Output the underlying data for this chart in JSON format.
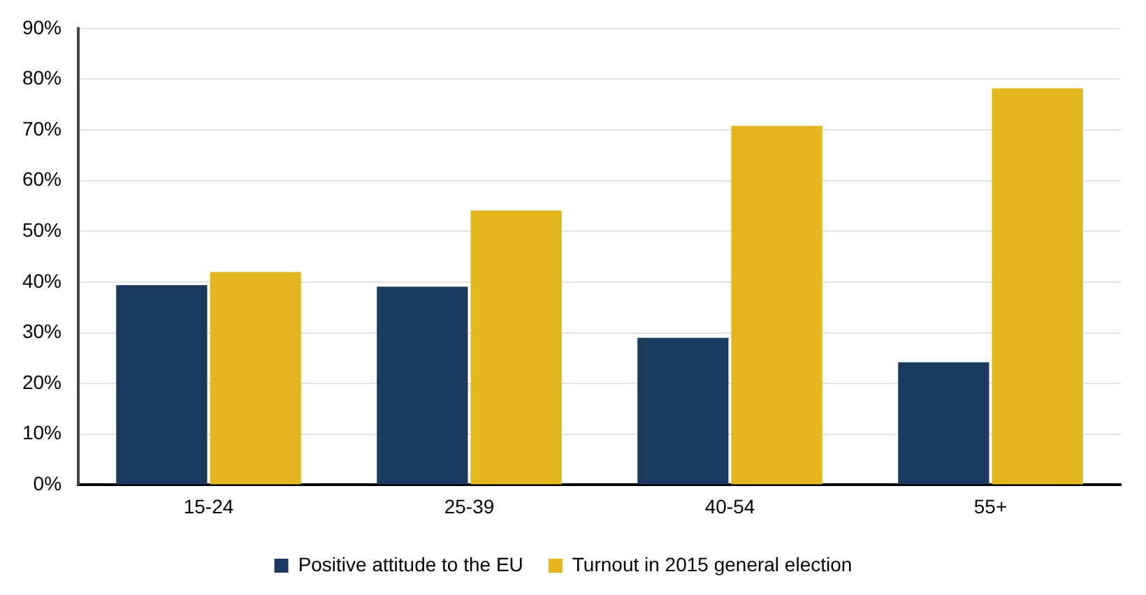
{
  "chart_data": {
    "type": "bar",
    "categories": [
      "15-24",
      "25-39",
      "40-54",
      "55+"
    ],
    "series": [
      {
        "name": "Positive attitude to the EU",
        "color": "#1a3a5e",
        "values": [
          39.4,
          39.1,
          29.0,
          24.2
        ]
      },
      {
        "name": "Turnout in 2015 general election",
        "color": "#e3b61e",
        "values": [
          42.0,
          54.1,
          70.8,
          78.2
        ]
      }
    ],
    "ylim": [
      0,
      90
    ],
    "yticks": [
      {
        "value": 0,
        "label": "0%"
      },
      {
        "value": 10,
        "label": "10%"
      },
      {
        "value": 20,
        "label": "20%"
      },
      {
        "value": 30,
        "label": "30%"
      },
      {
        "value": 40,
        "label": "40%"
      },
      {
        "value": 50,
        "label": "50%"
      },
      {
        "value": 60,
        "label": "60%"
      },
      {
        "value": 70,
        "label": "70%"
      },
      {
        "value": 80,
        "label": "80%"
      },
      {
        "value": 90,
        "label": "90%"
      }
    ],
    "grid": "y",
    "legend": "bottom"
  }
}
